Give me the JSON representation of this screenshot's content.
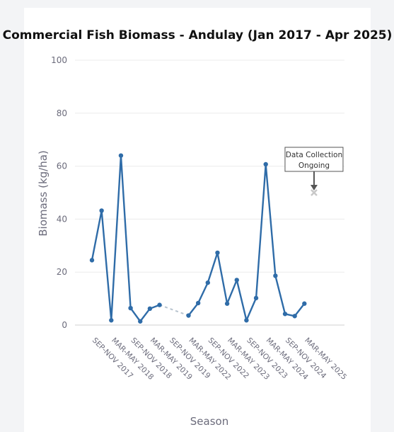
{
  "chart_data": {
    "type": "line",
    "title": "Commercial Fish Biomass - Andulay (Jan 2017 - Apr 2025)",
    "xlabel": "Season",
    "ylabel": "Biomass (kg/ha)",
    "ylim": [
      0,
      100
    ],
    "yticks": [
      0,
      20,
      40,
      60,
      80,
      100
    ],
    "grid": true,
    "x_tick_labels": [
      "SEP-NOV 2017",
      "MAR-MAY 2018",
      "SEP-NOV 2018",
      "MAR-MAY 2019",
      "SEP-NOV 2019",
      "MAR-MAY 2022",
      "SEP-NOV 2022",
      "MAR-MAY 2023",
      "SEP-NOV 2023",
      "MAR-MAY 2024",
      "SEP-NOV 2024",
      "MAR-MAY 2025"
    ],
    "series": [
      {
        "color": "#2f6ca8",
        "x": [
          0,
          0.5,
          1,
          1.5,
          2,
          2.5,
          3,
          3.5,
          4,
          5,
          5.5,
          6,
          6.5,
          7,
          7.5,
          8,
          8.5,
          9,
          9.5,
          10,
          10.5,
          11
        ],
        "values": [
          24.5,
          43.2,
          1.8,
          64.0,
          6.4,
          1.4,
          6.2,
          7.6,
          null,
          3.6,
          8.3,
          16.0,
          27.3,
          8.1,
          17.0,
          1.8,
          10.2,
          60.7,
          18.6,
          4.2,
          3.4,
          8.1
        ]
      }
    ],
    "gap_connector": {
      "from_x": 3.5,
      "to_x": 5,
      "color": "#b8c4cf",
      "style": "dashed"
    },
    "pending_point": {
      "x": 11.5,
      "y": 50,
      "marker": "x",
      "color": "#c8c8c8"
    },
    "annotation": {
      "lines": [
        "Data Collection",
        "Ongoing"
      ],
      "x": 11.5,
      "y": 50,
      "arrow_color": "#555555"
    }
  }
}
